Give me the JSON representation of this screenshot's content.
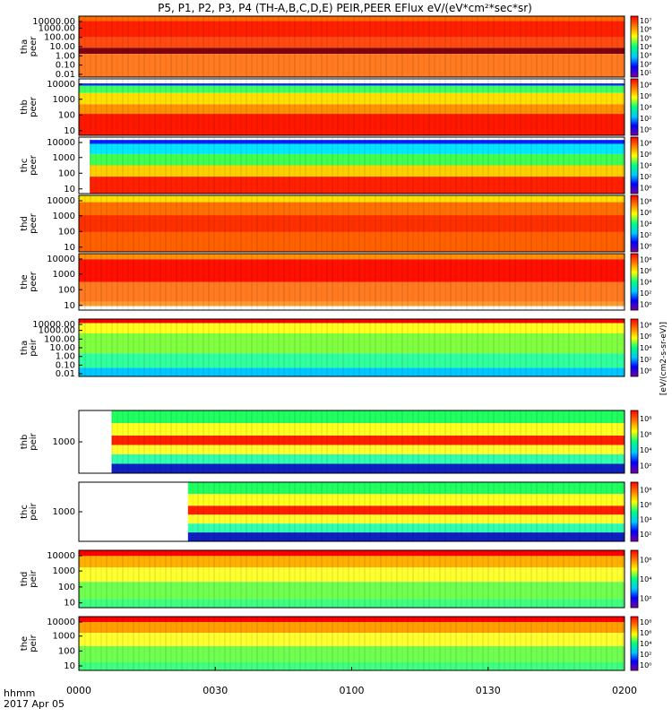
{
  "chart_data": {
    "type": "heatmap",
    "title": "P5, P1, P2, P3, P4 (TH-A,B,C,D,E) PEIR,PEER EFlux eV/(eV*cm²*sec*sr)",
    "x_ticks": [
      "0000",
      "0030",
      "0100",
      "0130",
      "0200"
    ],
    "x_time_label": "hhmm",
    "x_date_label": "2017 Apr 05",
    "colorbar_label": "[eV/(cm2-s-sr-eV)]",
    "color_scale": [
      "#7a00a0",
      "#0000ff",
      "#00c8ff",
      "#00ff80",
      "#ffff00",
      "#ff8000",
      "#ff0000"
    ],
    "panels": [
      {
        "name": "tha peer",
        "ylabel": [
          "tha",
          "peer"
        ],
        "yticks": [
          "10000.00",
          "1000.00",
          "100.00",
          "10.00",
          "1.00",
          "0.10",
          "0.01"
        ],
        "cbar_ticks": [
          "10⁷",
          "10⁶",
          "10⁵",
          "10⁴",
          "10³",
          "10²",
          "10¹"
        ]
      },
      {
        "name": "thb peer",
        "ylabel": [
          "thb",
          "peer"
        ],
        "yticks": [
          "10000",
          "1000",
          "100",
          "10"
        ],
        "cbar_ticks": [
          "10⁸",
          "10⁶",
          "10⁴",
          "10²",
          "10⁰"
        ]
      },
      {
        "name": "thc peer",
        "ylabel": [
          "thc",
          "peer"
        ],
        "yticks": [
          "10000",
          "1000",
          "100",
          "10"
        ],
        "cbar_ticks": [
          "10⁸",
          "10⁶",
          "10⁴",
          "10²",
          "10⁰"
        ]
      },
      {
        "name": "thd peer",
        "ylabel": [
          "thd",
          "peer"
        ],
        "yticks": [
          "10000",
          "1000",
          "100",
          "10"
        ],
        "cbar_ticks": [
          "10⁸",
          "10⁶",
          "10⁴",
          "10²",
          "10⁰"
        ]
      },
      {
        "name": "the peer",
        "ylabel": [
          "the",
          "peer"
        ],
        "yticks": [
          "10000",
          "1000",
          "100",
          "10"
        ],
        "cbar_ticks": [
          "10⁸",
          "10⁶",
          "10⁴",
          "10²",
          "10⁰"
        ]
      },
      {
        "name": "tha peir",
        "ylabel": [
          "tha",
          "peir"
        ],
        "yticks": [
          "10000.00",
          "1000.00",
          "100.00",
          "10.00",
          "1.00",
          "0.10",
          "0.01"
        ],
        "cbar_ticks": [
          "10⁸",
          "10⁶",
          "10⁴",
          "10²",
          "10⁰"
        ]
      },
      {
        "name": "thb peir",
        "ylabel": [
          "thb",
          "peir"
        ],
        "yticks": [
          "1000"
        ],
        "cbar_ticks": [
          "10⁸",
          "10⁶",
          "10⁴",
          "10²"
        ]
      },
      {
        "name": "thc peir",
        "ylabel": [
          "thc",
          "peir"
        ],
        "yticks": [
          "1000"
        ],
        "cbar_ticks": [
          "10⁸",
          "10⁶",
          "10⁴",
          "10²"
        ]
      },
      {
        "name": "thd peir",
        "ylabel": [
          "thd",
          "peir"
        ],
        "yticks": [
          "10000",
          "1000",
          "100",
          "10"
        ],
        "cbar_ticks": [
          "10⁶",
          "10⁴",
          "10²"
        ]
      },
      {
        "name": "the peir",
        "ylabel": [
          "the",
          "peir"
        ],
        "yticks": [
          "10000",
          "1000",
          "100",
          "10"
        ],
        "cbar_ticks": [
          "10⁸",
          "10⁶",
          "10⁴",
          "10²",
          "10⁰"
        ]
      }
    ]
  }
}
